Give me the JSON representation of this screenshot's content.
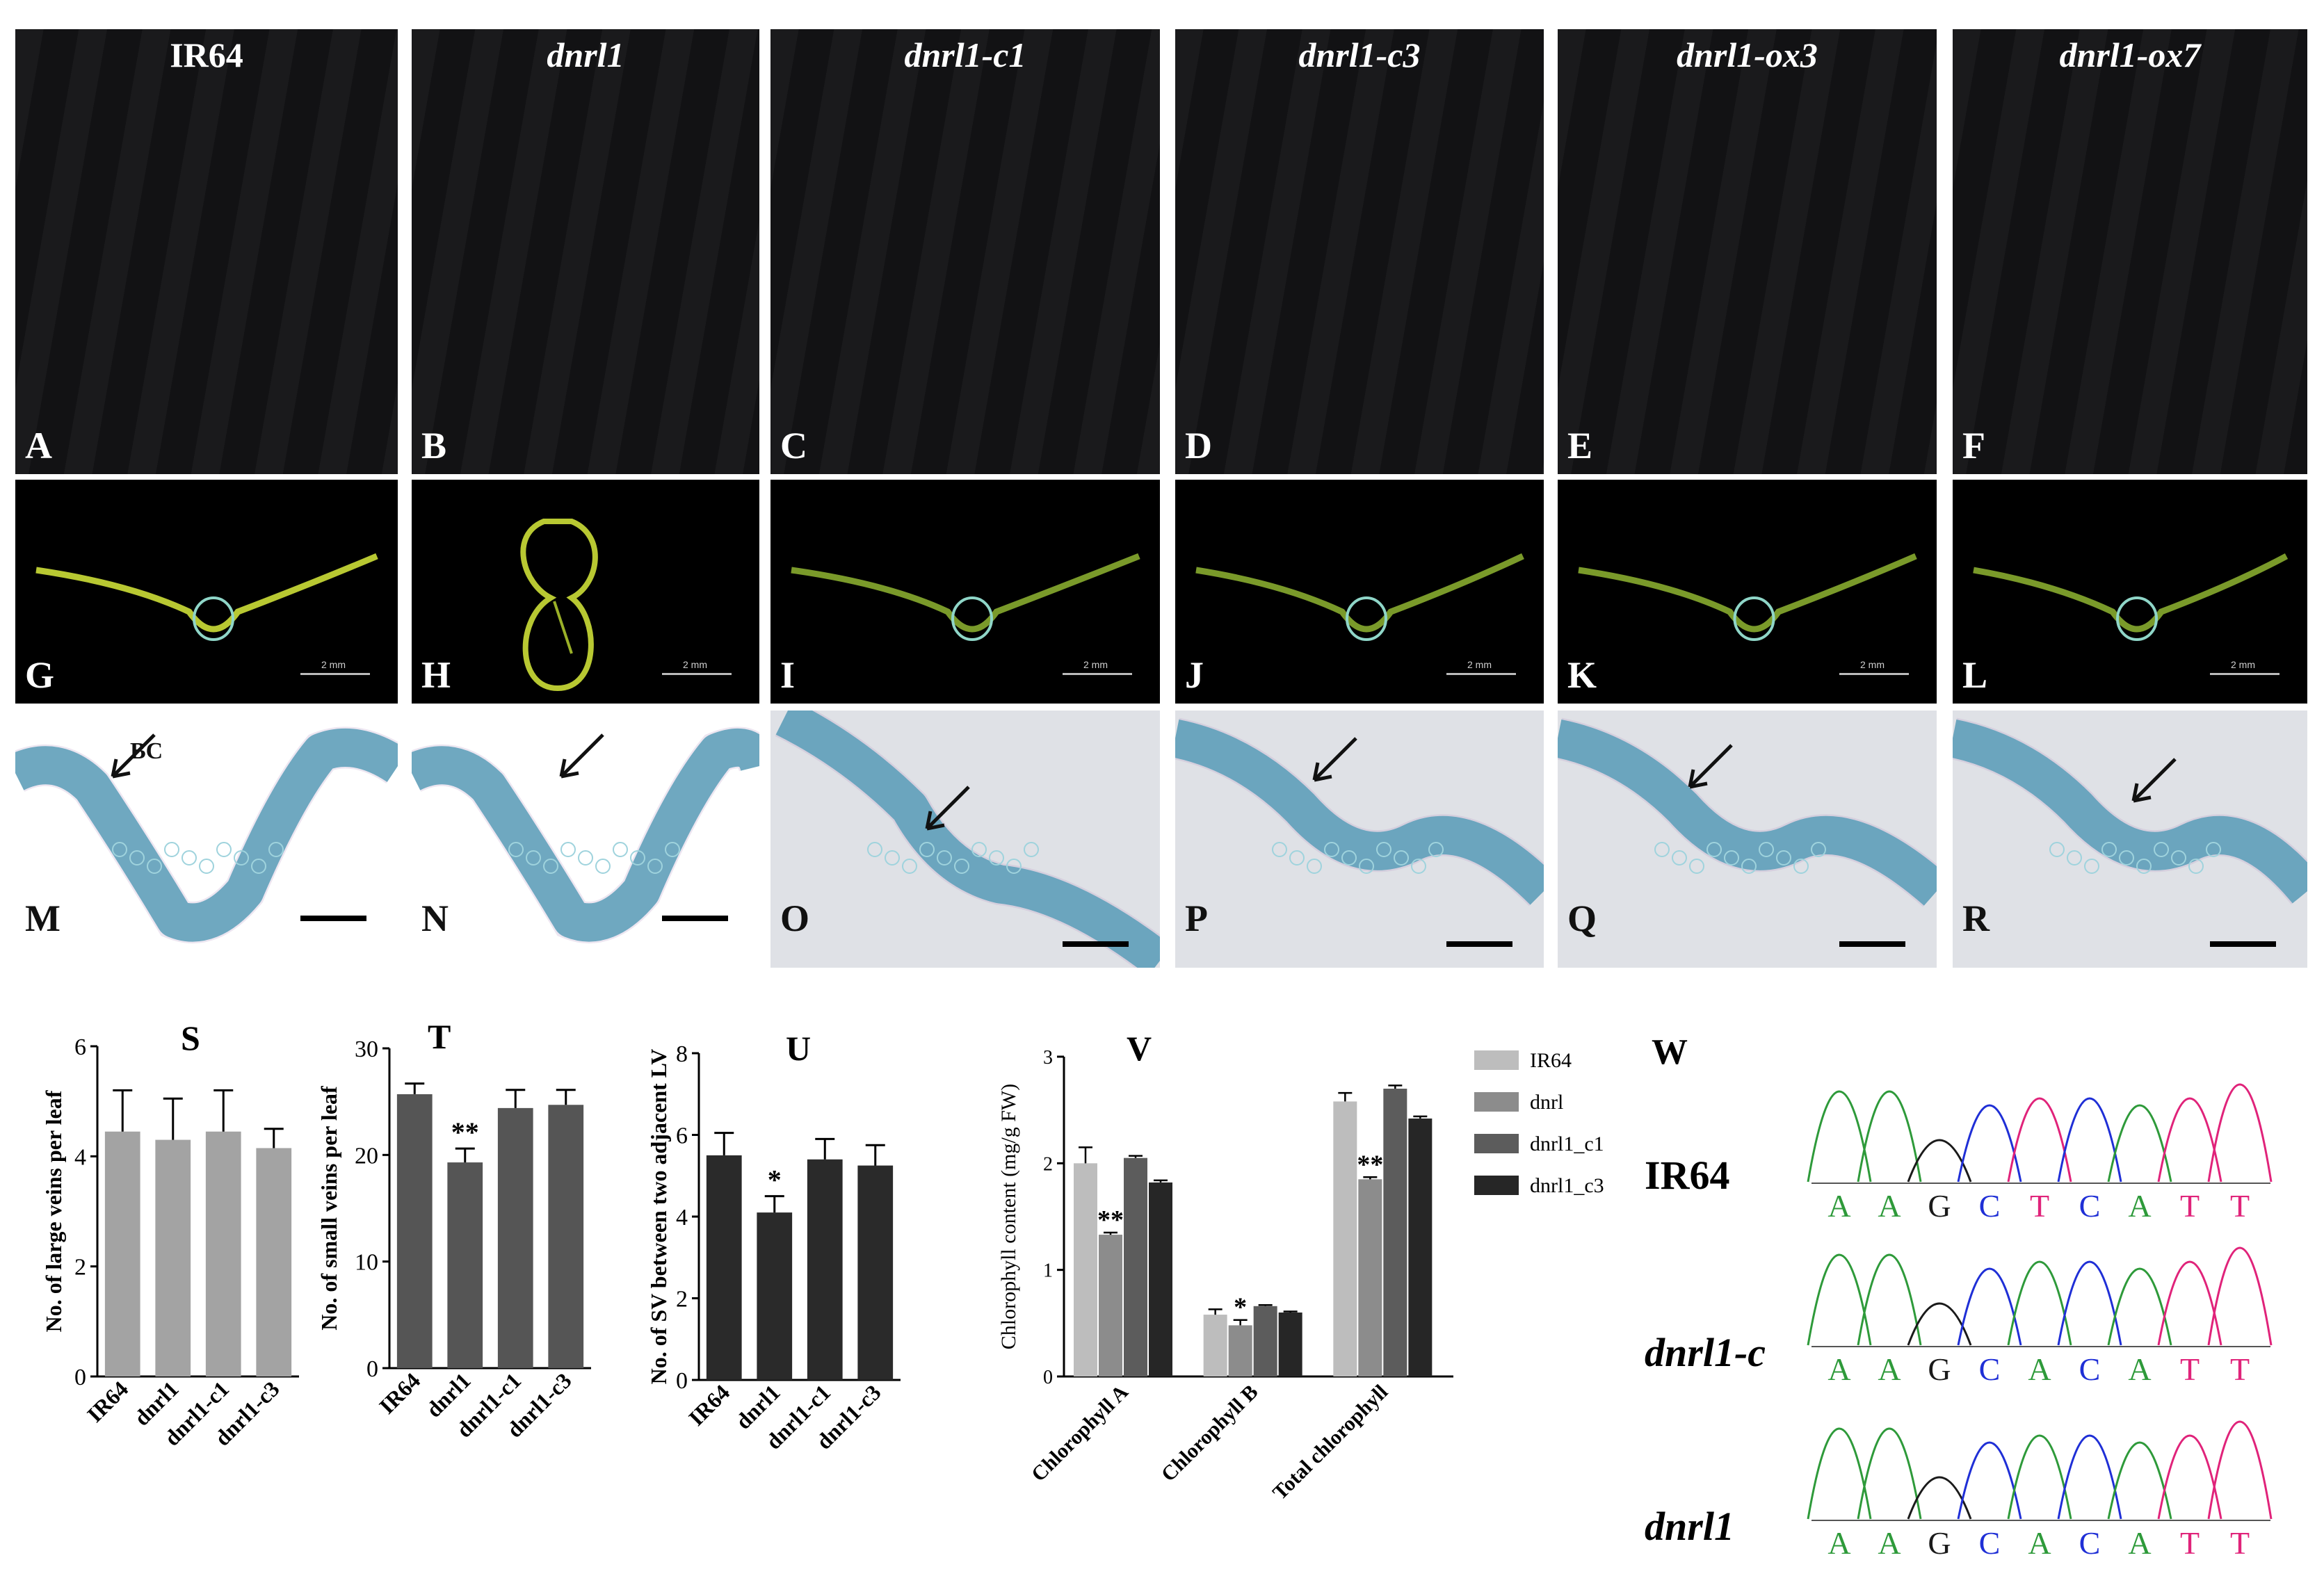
{
  "photo_panels": [
    {
      "strain": "IR64",
      "letter": "A"
    },
    {
      "strain": "dnrl1",
      "letter": "B"
    },
    {
      "strain": "dnrl1-c1",
      "letter": "C"
    },
    {
      "strain": "dnrl1-c3",
      "letter": "D"
    },
    {
      "strain": "dnrl1-ox3",
      "letter": "E"
    },
    {
      "strain": "dnrl1-ox7",
      "letter": "F"
    }
  ],
  "section_panels": [
    {
      "letter": "G",
      "scale": "2 mm"
    },
    {
      "letter": "H",
      "scale": "2 mm"
    },
    {
      "letter": "I",
      "scale": "2 mm"
    },
    {
      "letter": "J",
      "scale": "2 mm"
    },
    {
      "letter": "K",
      "scale": "2 mm"
    },
    {
      "letter": "L",
      "scale": "2 mm"
    }
  ],
  "histology_panels": [
    {
      "letter": "M",
      "label": "BC"
    },
    {
      "letter": "N"
    },
    {
      "letter": "O"
    },
    {
      "letter": "P"
    },
    {
      "letter": "Q"
    },
    {
      "letter": "R"
    }
  ],
  "chart_data": [
    {
      "panel": "S",
      "type": "bar",
      "ylabel": "No. of large veins per leaf",
      "categories": [
        "IR64",
        "dnrl1",
        "dnrl1-c1",
        "dnrl1-c3"
      ],
      "values": [
        4.45,
        4.3,
        4.45,
        4.15
      ],
      "errors": [
        0.75,
        0.75,
        0.75,
        0.35
      ],
      "ylim": [
        0,
        6
      ],
      "yticks": [
        "0",
        "2",
        "4",
        "6"
      ],
      "color": "#a3a3a3",
      "significance": [
        "",
        "",
        "",
        ""
      ]
    },
    {
      "panel": "T",
      "type": "bar",
      "ylabel": "No. of small veins per leaf",
      "categories": [
        "IR64",
        "dnrl1",
        "dnrl1-c1",
        "dnrl1-c3"
      ],
      "values": [
        25.7,
        19.3,
        24.4,
        24.7
      ],
      "errors": [
        1.0,
        1.3,
        1.7,
        1.4
      ],
      "ylim": [
        0,
        30
      ],
      "yticks": [
        "0",
        "10",
        "20",
        "30"
      ],
      "color": "#555555",
      "significance": [
        "",
        "**",
        "",
        ""
      ]
    },
    {
      "panel": "U",
      "type": "bar",
      "ylabel": "No. of SV between two adjacent LV",
      "categories": [
        "IR64",
        "dnrl1",
        "dnrl1-c1",
        "dnrl1-c3"
      ],
      "values": [
        5.5,
        4.1,
        5.4,
        5.25
      ],
      "errors": [
        0.55,
        0.4,
        0.5,
        0.5
      ],
      "ylim": [
        0,
        8
      ],
      "yticks": [
        "0",
        "2",
        "4",
        "6",
        "8"
      ],
      "color": "#2a2a2a",
      "significance": [
        "",
        "*",
        "",
        ""
      ]
    },
    {
      "panel": "V",
      "type": "bar",
      "ylabel": "Chlorophyll content (mg/g FW)",
      "categories": [
        "Chlorophyll A",
        "Chlorophyll B",
        "Total chlorophyll"
      ],
      "series": [
        {
          "name": "IR64",
          "values": [
            2.0,
            0.58,
            2.58
          ],
          "errors": [
            0.15,
            0.05,
            0.08
          ],
          "color": "#bdbdbd"
        },
        {
          "name": "dnrl",
          "values": [
            1.33,
            0.48,
            1.85
          ],
          "errors": [
            0.02,
            0.05,
            0.02
          ],
          "color": "#8c8c8c"
        },
        {
          "name": "dnrl1_c1",
          "values": [
            2.05,
            0.66,
            2.7
          ],
          "errors": [
            0.02,
            0.01,
            0.03
          ],
          "color": "#5c5c5c"
        },
        {
          "name": "dnrl1_c3",
          "values": [
            1.82,
            0.6,
            2.42
          ],
          "errors": [
            0.02,
            0.01,
            0.02
          ],
          "color": "#262626"
        }
      ],
      "significance": [
        [
          "",
          "**",
          "",
          ""
        ],
        [
          "",
          "*",
          "",
          ""
        ],
        [
          "",
          "**",
          "",
          ""
        ]
      ],
      "ylim": [
        0,
        3
      ],
      "yticks": [
        "0",
        "1",
        "2",
        "3"
      ]
    }
  ],
  "sequence_panel": {
    "letter": "W",
    "tracks": [
      {
        "label": "IR64",
        "italic": false,
        "bases": [
          "A",
          "A",
          "G",
          "C",
          "T",
          "C",
          "A",
          "T",
          "T"
        ]
      },
      {
        "label": "dnrl1-c",
        "italic": true,
        "bases": [
          "A",
          "A",
          "G",
          "C",
          "A",
          "C",
          "A",
          "T",
          "T"
        ]
      },
      {
        "label": "dnrl1",
        "italic": true,
        "bases": [
          "A",
          "A",
          "G",
          "C",
          "A",
          "C",
          "A",
          "T",
          "T"
        ]
      }
    ]
  },
  "colors": {
    "A": "#2e9a3a",
    "C": "#1f2fd6",
    "G": "#1a1a1a",
    "T": "#e0237a",
    "bc_label": "#111111"
  }
}
